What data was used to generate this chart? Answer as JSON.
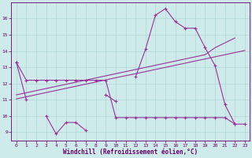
{
  "xlabel": "Windchill (Refroidissement éolien,°C)",
  "background_color": "#ceeaea",
  "grid_color": "#b0d8d8",
  "line_color": "#993399",
  "x_hours": [
    0,
    1,
    2,
    3,
    4,
    5,
    6,
    7,
    8,
    9,
    10,
    11,
    12,
    13,
    14,
    15,
    16,
    17,
    18,
    19,
    20,
    21,
    22,
    23
  ],
  "curve1_y": [
    13.3,
    12.2,
    12.2,
    12.2,
    12.2,
    12.2,
    12.2,
    12.2,
    12.2,
    12.2,
    9.9,
    9.9,
    9.9,
    9.9,
    9.9,
    9.9,
    9.9,
    9.9,
    9.9,
    9.9,
    9.9,
    9.9,
    9.5,
    9.5
  ],
  "curve2_y": [
    13.3,
    11.0,
    null,
    10.0,
    8.9,
    9.6,
    9.6,
    9.1,
    null,
    11.3,
    10.9,
    null,
    12.4,
    14.1,
    16.2,
    16.6,
    15.8,
    15.4,
    15.4,
    14.2,
    13.1,
    10.7,
    9.5,
    null
  ],
  "curve3_y": [
    11.05,
    11.18,
    11.31,
    11.44,
    11.57,
    11.7,
    11.83,
    11.96,
    12.09,
    12.22,
    12.35,
    12.48,
    12.6,
    12.73,
    12.86,
    12.99,
    13.12,
    13.25,
    13.38,
    13.51,
    13.64,
    13.77,
    13.9,
    14.03
  ],
  "curve4_y": [
    11.3,
    11.43,
    11.56,
    11.69,
    11.82,
    11.95,
    12.08,
    12.21,
    12.34,
    12.47,
    12.6,
    12.73,
    12.86,
    12.99,
    13.12,
    13.25,
    13.38,
    13.51,
    13.64,
    13.77,
    14.2,
    14.5,
    14.8,
    null
  ],
  "ylim": [
    8.5,
    17.0
  ],
  "xlim": [
    -0.5,
    23.5
  ],
  "yticks": [
    9,
    10,
    11,
    12,
    13,
    14,
    15,
    16
  ],
  "xticks": [
    0,
    1,
    2,
    3,
    4,
    5,
    6,
    7,
    8,
    9,
    10,
    11,
    12,
    13,
    14,
    15,
    16,
    17,
    18,
    19,
    20,
    21,
    22,
    23
  ]
}
